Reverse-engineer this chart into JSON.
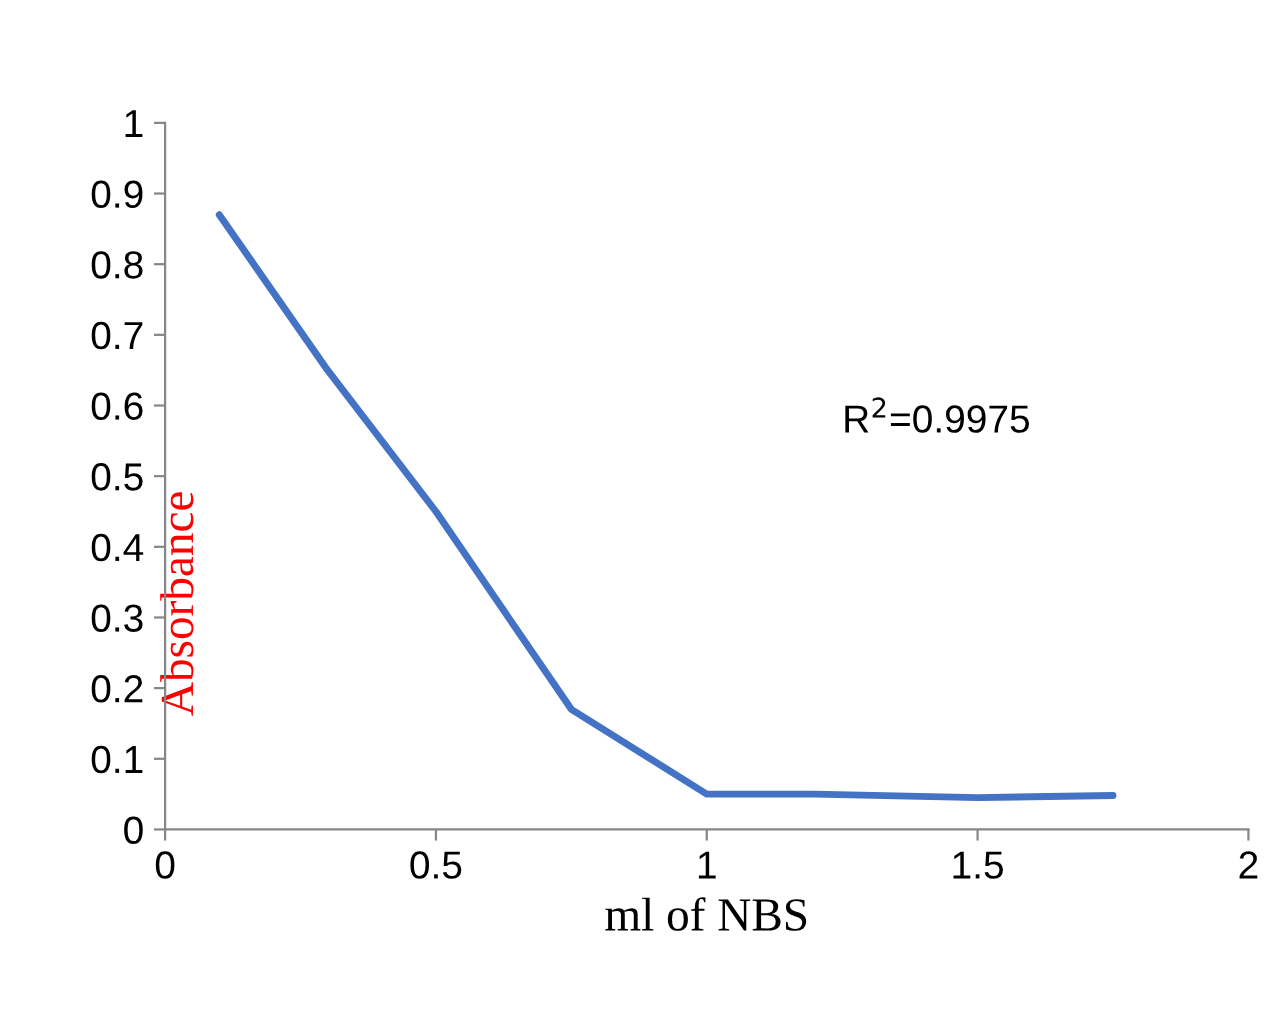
{
  "chart_data": {
    "type": "line",
    "xlabel": "ml of NBS",
    "ylabel": "Absorbance",
    "x": [
      0.1,
      0.3,
      0.5,
      0.75,
      1.0,
      1.2,
      1.5,
      1.75
    ],
    "series": [
      {
        "color": "#4472c4",
        "values": [
          0.87,
          0.65,
          0.45,
          0.17,
          0.05,
          0.05,
          0.045,
          0.048
        ]
      }
    ],
    "xlim": [
      0,
      2
    ],
    "xticks": [
      0,
      0.5,
      1,
      1.5,
      2
    ],
    "ylim": [
      0,
      1
    ],
    "yticks": [
      0,
      0.1,
      0.2,
      0.3,
      0.4,
      0.5,
      0.6,
      0.7,
      0.8,
      0.9,
      1
    ],
    "annotations": [
      "R$^{2}$=0.9975"
    ],
    "grid": false,
    "legend": false,
    "marker": "none",
    "line_style": "solid"
  }
}
